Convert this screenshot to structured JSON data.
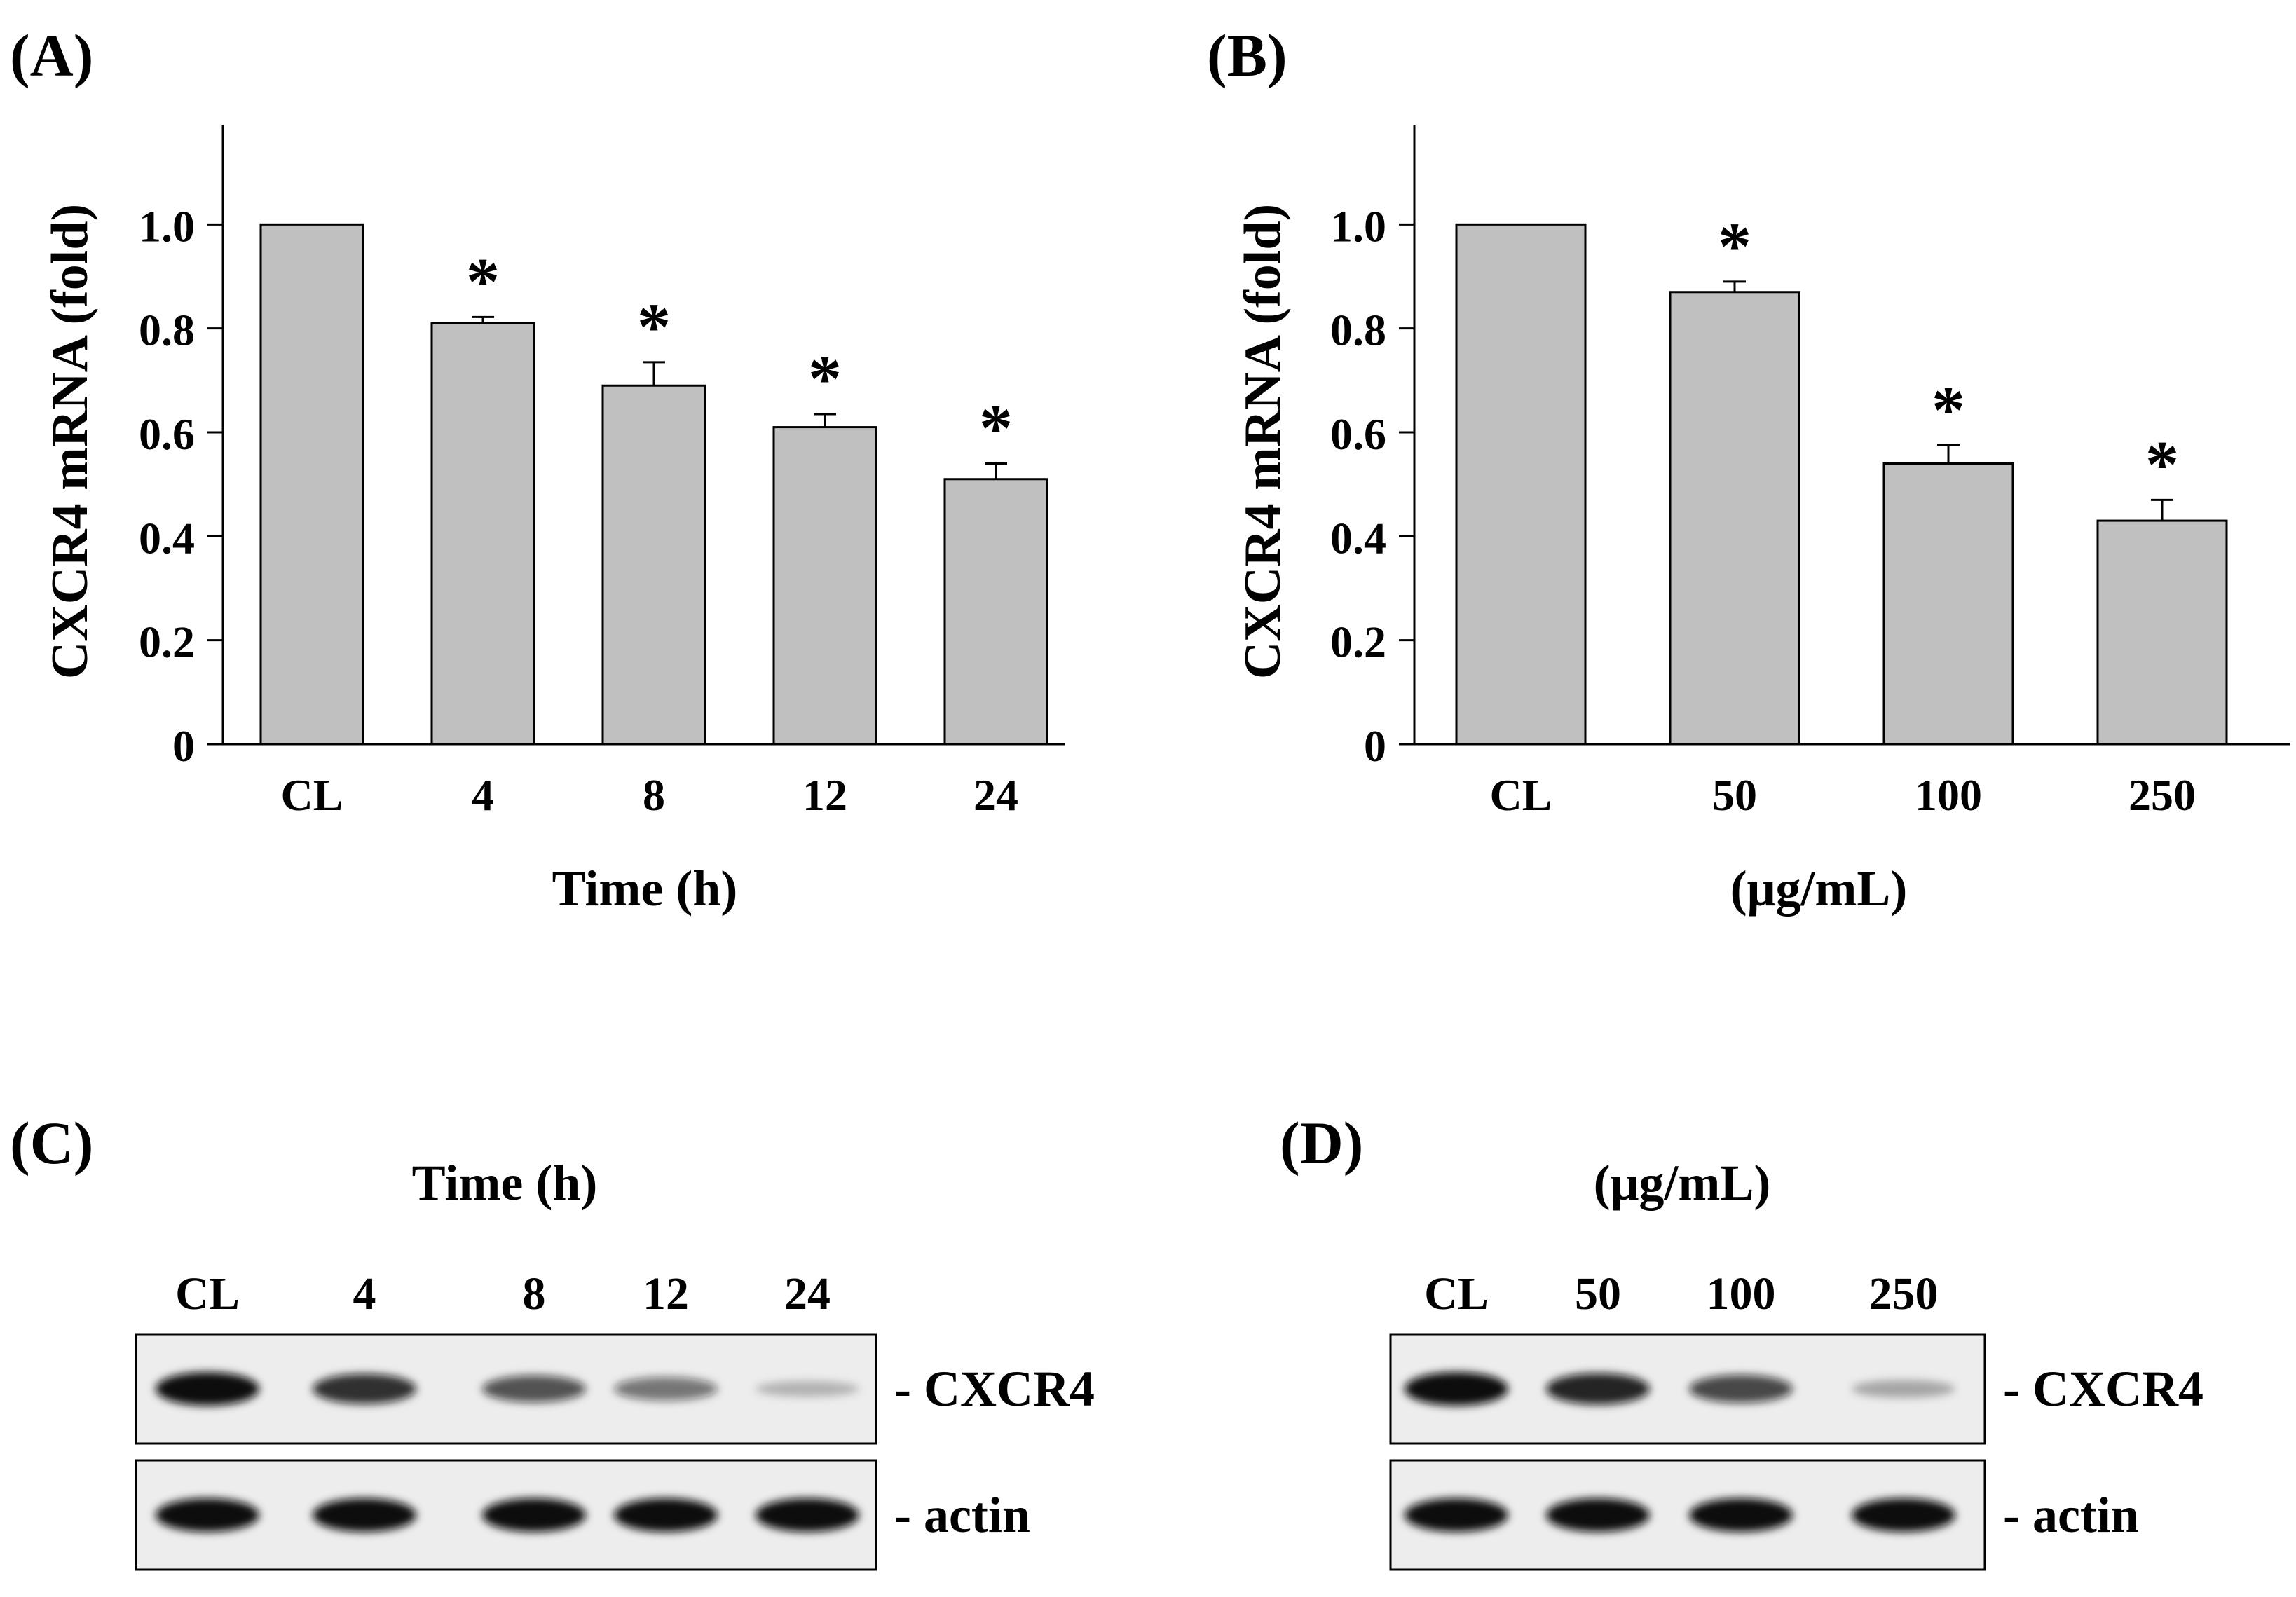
{
  "chart_data": [
    {
      "panel_label": "(A)",
      "type": "bar",
      "title": "",
      "categories": [
        "CL",
        "4",
        "8",
        "12",
        "24"
      ],
      "values": [
        1.0,
        0.81,
        0.69,
        0.61,
        0.51
      ],
      "errors": [
        0,
        0.012,
        0.045,
        0.025,
        0.03
      ],
      "significance": [
        "",
        "*",
        "*",
        "*",
        "*"
      ],
      "xlabel": "Time (h)",
      "ylabel": "CXCR4 mRNA (fold)",
      "ylim": [
        0,
        1.2
      ],
      "yticks": [
        "0",
        "0.2",
        "0.4",
        "0.6",
        "0.8",
        "1.0"
      ],
      "bar_color": "#c0c0c0",
      "grid": false
    },
    {
      "panel_label": "(B)",
      "type": "bar",
      "title": "",
      "categories": [
        "CL",
        "50",
        "100",
        "250"
      ],
      "values": [
        1.0,
        0.87,
        0.54,
        0.43
      ],
      "errors": [
        0,
        0.02,
        0.035,
        0.04
      ],
      "significance": [
        "",
        "*",
        "*",
        "*"
      ],
      "xlabel": "(μg/mL)",
      "ylabel": "CXCR4 mRNA (fold)",
      "ylim": [
        0,
        1.2
      ],
      "yticks": [
        "0",
        "0.2",
        "0.4",
        "0.6",
        "0.8",
        "1.0"
      ],
      "bar_color": "#c0c0c0",
      "grid": false
    }
  ],
  "blots": [
    {
      "panel_label": "(C)",
      "header": "Time (h)",
      "lanes": [
        "CL",
        "4",
        "8",
        "12",
        "24"
      ],
      "rows": [
        {
          "label": "- CXCR4",
          "intensities": [
            1.0,
            0.85,
            0.7,
            0.55,
            0.2
          ]
        },
        {
          "label": "- actin",
          "intensities": [
            1.0,
            1.0,
            1.0,
            1.0,
            1.0
          ]
        }
      ]
    },
    {
      "panel_label": "(D)",
      "header": "(μg/mL)",
      "lanes": [
        "CL",
        "50",
        "100",
        "250"
      ],
      "rows": [
        {
          "label": "- CXCR4",
          "intensities": [
            1.0,
            0.9,
            0.75,
            0.3
          ]
        },
        {
          "label": "- actin",
          "intensities": [
            1.0,
            1.0,
            1.0,
            1.0
          ]
        }
      ]
    }
  ]
}
